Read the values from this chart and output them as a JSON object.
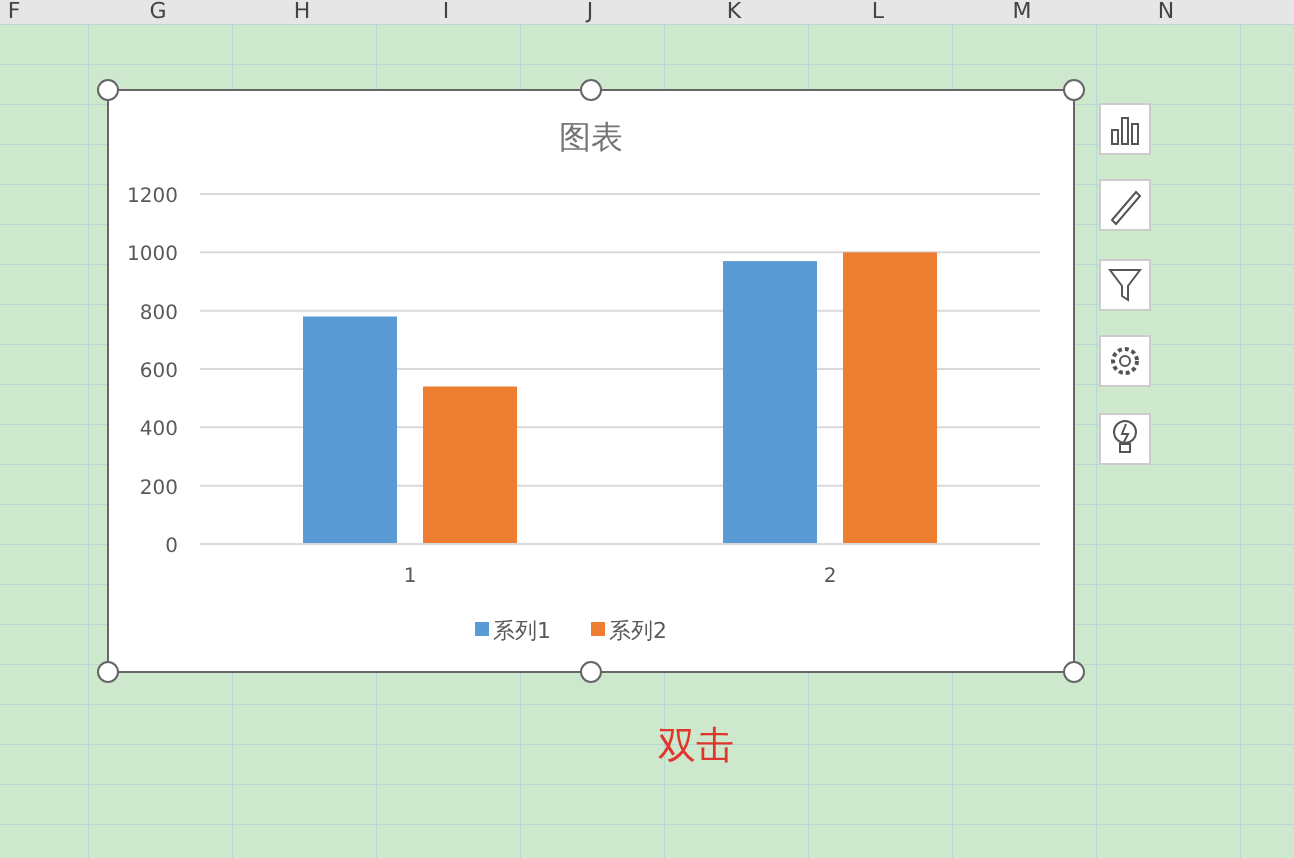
{
  "chart_data": {
    "type": "bar",
    "title": "图表",
    "categories": [
      "1",
      "2"
    ],
    "series": [
      {
        "name": "系列1",
        "color": "#5b9bd5",
        "values": [
          780,
          970
        ]
      },
      {
        "name": "系列2",
        "color": "#ed7d31",
        "values": [
          540,
          1000
        ]
      }
    ],
    "ylim": [
      0,
      1200
    ],
    "yticks": [
      0,
      200,
      400,
      600,
      800,
      1000,
      1200
    ],
    "grid": true,
    "legend": "bottom",
    "annotations": [
      "F",
      "G",
      "H",
      "I",
      "J",
      "K",
      "L",
      "M",
      "N",
      "双击"
    ]
  }
}
